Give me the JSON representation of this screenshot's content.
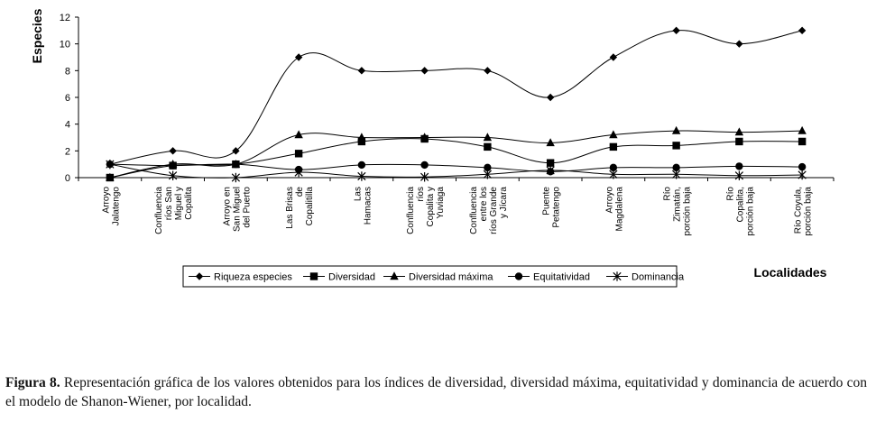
{
  "chart_data": {
    "type": "line",
    "title": "",
    "xlabel": "Localidades",
    "ylabel": "Especies",
    "ylim": [
      0,
      12
    ],
    "y_ticks": [
      "0",
      "2",
      "4",
      "6",
      "8",
      "10",
      "12"
    ],
    "grid": false,
    "legend_position": "bottom",
    "categories": [
      [
        "Arroyo",
        "Jalatengo"
      ],
      [
        "Confluencia",
        "ríos San",
        "Miguel y",
        "Copalita"
      ],
      [
        "Arroyo en",
        "San Miguel",
        "del Puerto"
      ],
      [
        "Las Brisas",
        "de",
        "Copalitilla"
      ],
      [
        "Las",
        "Hamacas"
      ],
      [
        "Confluencia",
        "ríos",
        "Copalita y",
        "Yuviaga"
      ],
      [
        "Confluencia",
        "entre los",
        "ríos Grande",
        "y Jícara"
      ],
      [
        "Puente",
        "Petatengo"
      ],
      [
        "Arroyo",
        "Magdalena"
      ],
      [
        "Río",
        "Zimatán,",
        "porción baja"
      ],
      [
        "Río",
        "Copalita,",
        "porción baja"
      ],
      [
        "Río Coyula,",
        "porción baja"
      ]
    ],
    "series": [
      {
        "name": "Riqueza especies",
        "marker": "diamond",
        "values": [
          1,
          2,
          2,
          9,
          8,
          8,
          8,
          6,
          9,
          11,
          10,
          11
        ]
      },
      {
        "name": "Diversidad",
        "marker": "square",
        "values": [
          0,
          0.9,
          1.0,
          1.8,
          2.7,
          2.9,
          2.3,
          1.1,
          2.3,
          2.4,
          2.7,
          2.7
        ]
      },
      {
        "name": "Diversidad máxima",
        "marker": "triangle",
        "values": [
          0,
          1.0,
          1.0,
          3.2,
          3.0,
          3.0,
          3.0,
          2.6,
          3.2,
          3.5,
          3.4,
          3.5
        ]
      },
      {
        "name": "Equitatividad",
        "marker": "circle",
        "values": [
          1,
          0.9,
          1.0,
          0.6,
          0.95,
          0.95,
          0.75,
          0.45,
          0.75,
          0.75,
          0.85,
          0.8
        ]
      },
      {
        "name": "Dominancia",
        "marker": "star",
        "values": [
          1,
          0.15,
          0,
          0.4,
          0.1,
          0.05,
          0.25,
          0.55,
          0.25,
          0.25,
          0.15,
          0.2
        ]
      }
    ]
  },
  "caption": {
    "label": "Figura 8.",
    "text": " Representación gráfica de los valores obtenidos para los índices de diversidad, diversidad máxima, equitatividad y dominancia de acuerdo con el modelo de Shanon-Wiener, por localidad."
  }
}
